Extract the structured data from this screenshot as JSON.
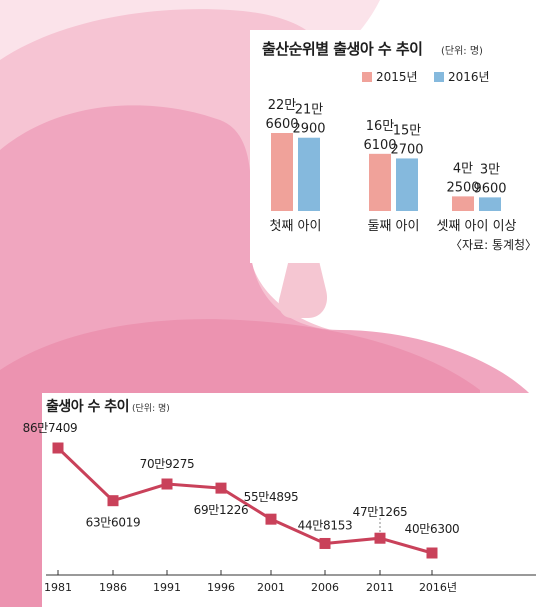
{
  "colors": {
    "pink_light": "#f8cfdc",
    "pink_mid": "#f1a9c0",
    "pink_deep": "#ec93b0",
    "bar_2015": "#f0a29a",
    "bar_2016": "#85b9dd",
    "line": "#c9415a"
  },
  "top_panel": {
    "title": "출산순위별 출생아 수 추이",
    "unit": "(단위: 명)",
    "source": "〈자료: 통계청〉"
  },
  "bottom_panel": {
    "title": "출생아 수 추이",
    "unit": "(단위: 명)"
  },
  "chart_data": [
    {
      "type": "bar",
      "title": "출산순위별 출생아 수 추이",
      "unit": "(단위: 명)",
      "categories": [
        "첫째 아이",
        "둘째 아이",
        "셋째 아이 이상"
      ],
      "series": [
        {
          "name": "2015년",
          "color": "#f0a29a",
          "values": [
            226600,
            166100,
            42500
          ],
          "labels": [
            [
              "22만",
              "6600"
            ],
            [
              "16만",
              "6100"
            ],
            [
              "4만",
              "2500"
            ]
          ]
        },
        {
          "name": "2016년",
          "color": "#85b9dd",
          "values": [
            212900,
            152700,
            39600
          ],
          "labels": [
            [
              "21만",
              "2900"
            ],
            [
              "15만",
              "2700"
            ],
            [
              "3만",
              "9600"
            ]
          ]
        }
      ],
      "legend": "top",
      "source": "〈자료: 통계청〉"
    },
    {
      "type": "line",
      "title": "출생아 수 추이",
      "unit": "(단위: 명)",
      "x": [
        "1981",
        "1986",
        "1991",
        "1996",
        "2001",
        "2006",
        "2011",
        "2016년"
      ],
      "series": [
        {
          "values": [
            867409,
            636019,
            709275,
            691226,
            554895,
            448153,
            471265,
            406300
          ],
          "labels": [
            "86만7409",
            "63만6019",
            "70만9275",
            "69만1226",
            "55만4895",
            "44만8153",
            "47만1265",
            "40만6300"
          ],
          "color": "#c9415a"
        }
      ],
      "grid": false
    }
  ]
}
